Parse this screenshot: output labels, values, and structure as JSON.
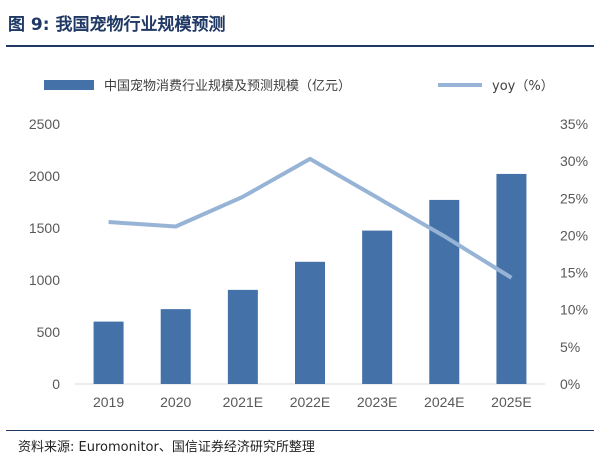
{
  "figure_title": "图 9:  我国宠物行业规模预测",
  "source": "资料来源:  Euromonitor、国信证券经济研究所整理",
  "colors": {
    "bar": "#4472a8",
    "line": "#97b3d6",
    "title": "#1f3864"
  },
  "chart_data": {
    "type": "bar",
    "title": "",
    "categories": [
      "2019",
      "2020",
      "2021E",
      "2022E",
      "2023E",
      "2024E",
      "2025E"
    ],
    "series": [
      {
        "name": "中国宠物消费行业规模及预测规模（亿元）",
        "kind": "bar",
        "axis": "left",
        "values": [
          600,
          720,
          905,
          1175,
          1475,
          1770,
          2020
        ]
      },
      {
        "name": "yoy（%）",
        "kind": "line",
        "axis": "right",
        "values": [
          21.8,
          21.2,
          25.2,
          30.3,
          25.1,
          19.9,
          14.3
        ]
      }
    ],
    "left_axis": {
      "ylim": [
        0,
        2500
      ],
      "ticks": [
        "0",
        "500",
        "1000",
        "1500",
        "2000",
        "2500"
      ]
    },
    "right_axis": {
      "ylim": [
        0,
        35
      ],
      "ticks": [
        "0%",
        "5%",
        "10%",
        "15%",
        "20%",
        "25%",
        "30%",
        "35%"
      ]
    },
    "grid": false,
    "legend_position": "top"
  }
}
